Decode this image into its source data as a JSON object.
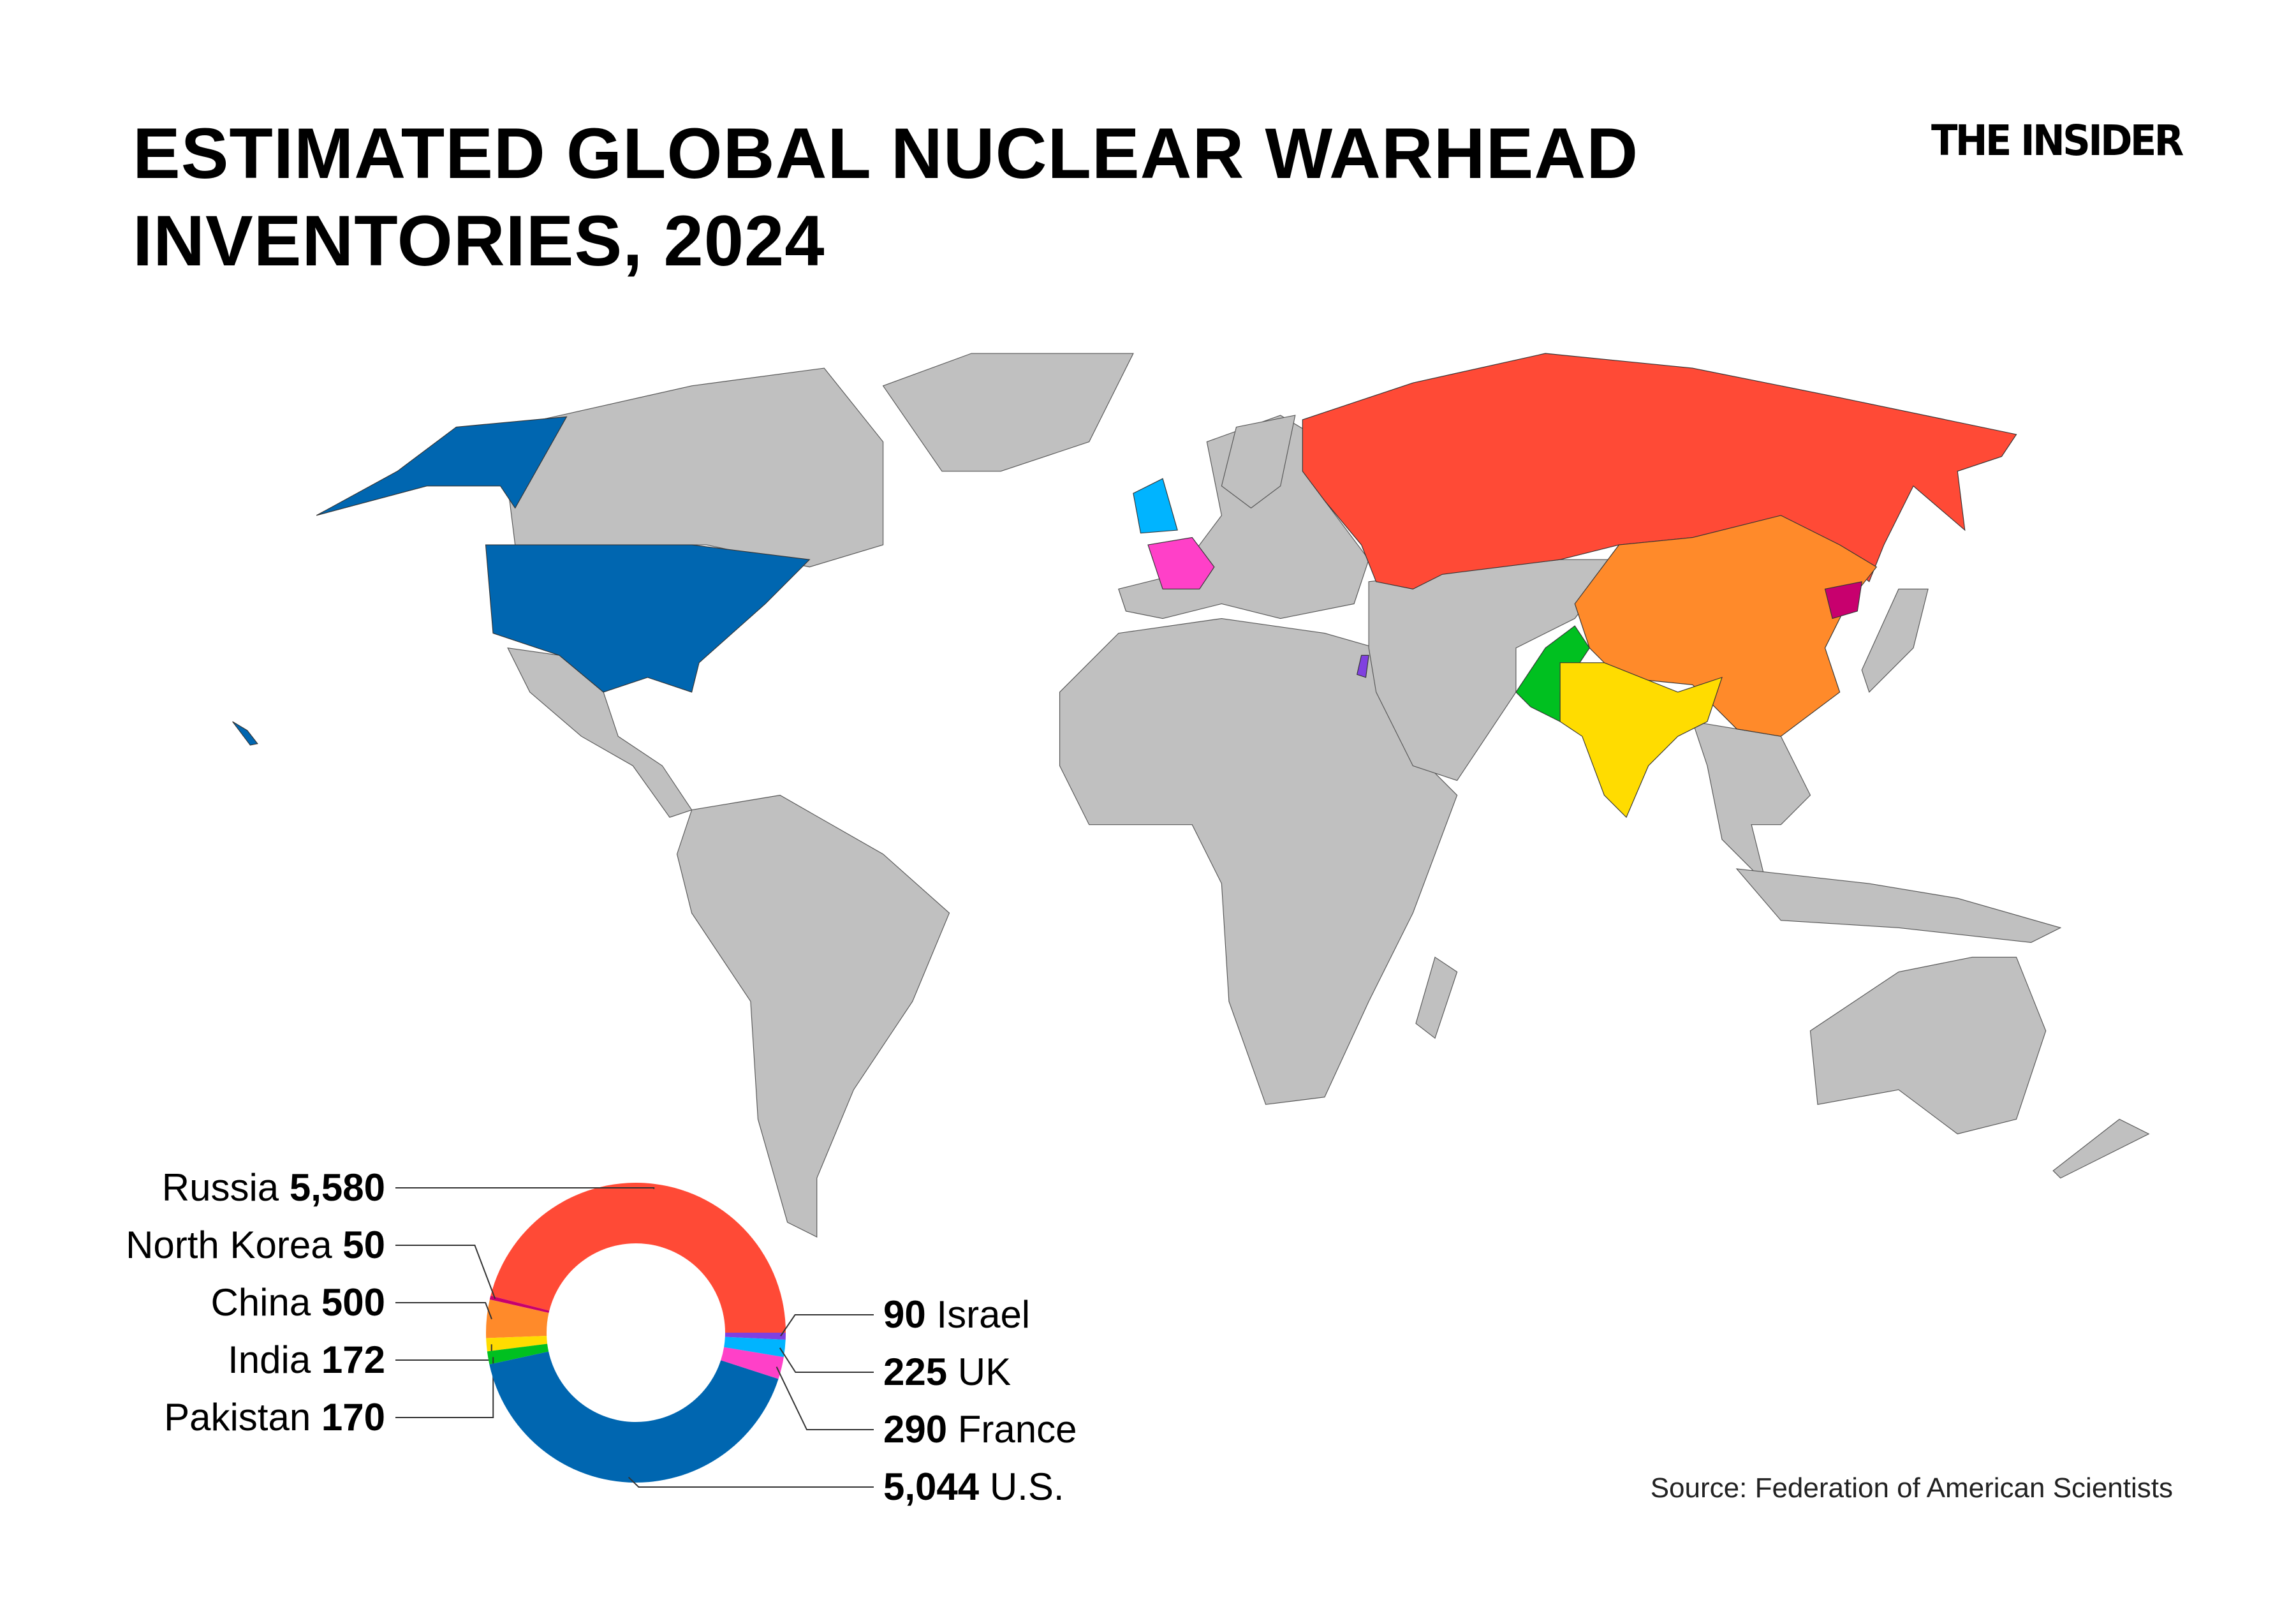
{
  "title": "ESTIMATED GLOBAL NUCLEAR WARHEAD INVENTORIES, 2024",
  "title_lines": [
    "ESTIMATED GLOBAL NUCLEAR WARHEAD",
    "INVENTORIES, 2024"
  ],
  "logo": "THE INSIDER",
  "source": "Source: Federation of American Scientists",
  "map": {
    "land_color": "#c0c0c0",
    "highlighted_countries": [
      {
        "country": "U.S.",
        "color": "#0066b0"
      },
      {
        "country": "Russia",
        "color": "#ff4a36"
      },
      {
        "country": "China",
        "color": "#ff8a2a"
      },
      {
        "country": "India",
        "color": "#ffdc00"
      },
      {
        "country": "Pakistan",
        "color": "#00c020"
      },
      {
        "country": "North Korea",
        "color": "#c8006e"
      },
      {
        "country": "Israel",
        "color": "#8040e0"
      },
      {
        "country": "UK",
        "color": "#00b4ff"
      },
      {
        "country": "France",
        "color": "#ff40c8"
      }
    ]
  },
  "chart_data": {
    "type": "pie",
    "variant": "donut",
    "title": "",
    "slices": [
      {
        "name": "Russia",
        "value": 5580,
        "label_value": "5,580",
        "color": "#ff4a36",
        "side": "left"
      },
      {
        "name": "North Korea",
        "value": 50,
        "label_value": "50",
        "color": "#c8006e",
        "side": "left"
      },
      {
        "name": "China",
        "value": 500,
        "label_value": "500",
        "color": "#ff8a2a",
        "side": "left"
      },
      {
        "name": "India",
        "value": 172,
        "label_value": "172",
        "color": "#ffdc00",
        "side": "left"
      },
      {
        "name": "Pakistan",
        "value": 170,
        "label_value": "170",
        "color": "#00c020",
        "side": "left"
      },
      {
        "name": "U.S.",
        "value": 5044,
        "label_value": "5,044",
        "color": "#0066b0",
        "side": "right"
      },
      {
        "name": "France",
        "value": 290,
        "label_value": "290",
        "color": "#ff40c8",
        "side": "right"
      },
      {
        "name": "UK",
        "value": 225,
        "label_value": "225",
        "color": "#00b4ff",
        "side": "right"
      },
      {
        "name": "Israel",
        "value": 90,
        "label_value": "90",
        "color": "#8040e0",
        "side": "right"
      }
    ]
  }
}
